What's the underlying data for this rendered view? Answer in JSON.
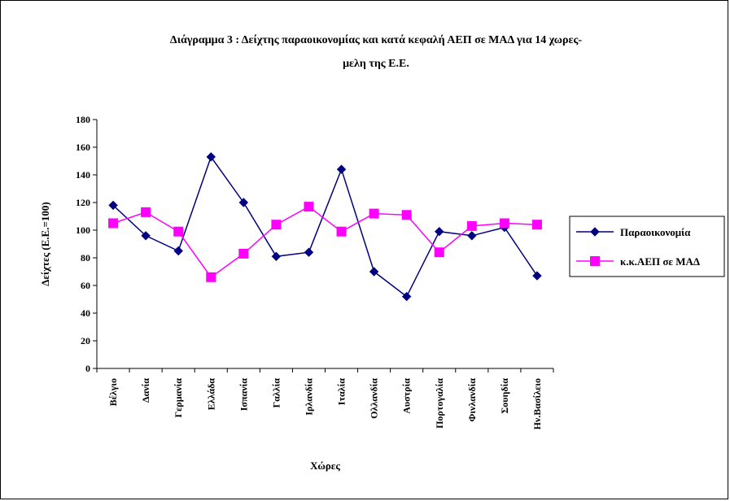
{
  "chart_data": {
    "type": "line",
    "title_lines": [
      "Διάγραμμα 3 : Δείχτης παραοικονομίας και κατά κεφαλή ΑΕΠ σε ΜΑΔ για  14 χωρες-",
      "μελη της Ε.Ε."
    ],
    "xlabel": "Χώρες",
    "ylabel": "Δείχτες (Ε.Ε.=100)",
    "ylim": [
      0,
      180
    ],
    "yticks": [
      0,
      20,
      40,
      60,
      80,
      100,
      120,
      140,
      160,
      180
    ],
    "yticks_labels": [
      "0",
      "20",
      "40",
      "60",
      "80",
      "100",
      "120",
      "140",
      "160",
      "180"
    ],
    "grid": false,
    "legend_position": "right",
    "categories": [
      "Βέλγιο",
      "Δανία",
      "Γερμανία",
      "Ελλάδα",
      "Ισπανία",
      "Γαλλία",
      "Ιρλανδία",
      "Ιταλία",
      "Ολλανδία",
      "Αυστρία",
      "Πορτογαλία",
      "Φινλανδία",
      "Σουηδία",
      "Ην.Βασίλειο"
    ],
    "series": [
      {
        "name": "Παραοικονομία",
        "color": "#000080",
        "marker": "diamond",
        "values": [
          118,
          96,
          85,
          153,
          120,
          81,
          84,
          144,
          70,
          52,
          99,
          96,
          102,
          67
        ]
      },
      {
        "name": "κ.κ.ΑΕΠ σε ΜΑΔ",
        "color": "#FF00FF",
        "marker": "square",
        "values": [
          105,
          113,
          99,
          66,
          83,
          104,
          117,
          99,
          112,
          111,
          84,
          103,
          105,
          104
        ]
      }
    ]
  }
}
